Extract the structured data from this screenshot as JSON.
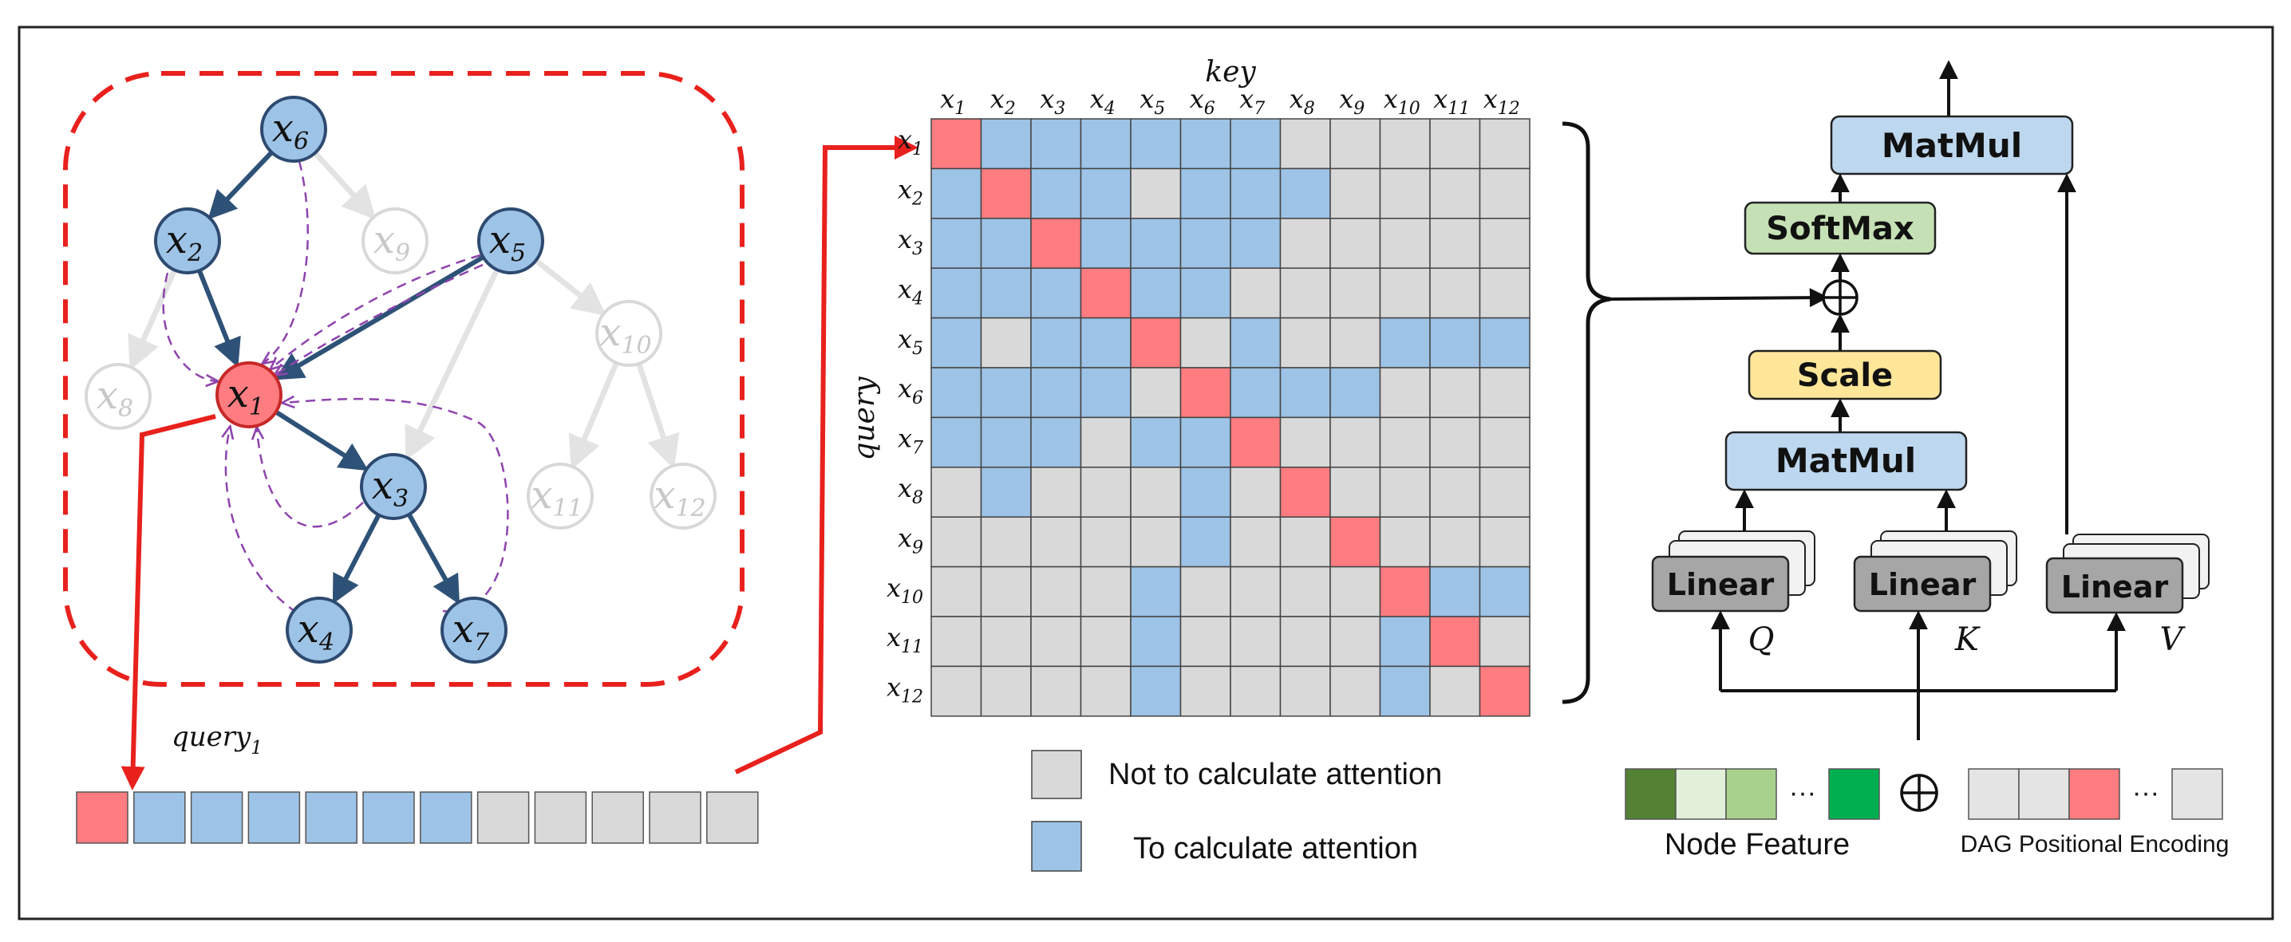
{
  "graph": {
    "nodes": [
      {
        "id": "x6",
        "base": "x",
        "sub": "6",
        "state": "active"
      },
      {
        "id": "x9",
        "base": "x",
        "sub": "9",
        "state": "inactive"
      },
      {
        "id": "x2",
        "base": "x",
        "sub": "2",
        "state": "active"
      },
      {
        "id": "x5",
        "base": "x",
        "sub": "5",
        "state": "active"
      },
      {
        "id": "x10",
        "base": "x",
        "sub": "10",
        "state": "inactive"
      },
      {
        "id": "x8",
        "base": "x",
        "sub": "8",
        "state": "inactive"
      },
      {
        "id": "x1",
        "base": "x",
        "sub": "1",
        "state": "query"
      },
      {
        "id": "x3",
        "base": "x",
        "sub": "3",
        "state": "active"
      },
      {
        "id": "x11",
        "base": "x",
        "sub": "11",
        "state": "inactive"
      },
      {
        "id": "x12",
        "base": "x",
        "sub": "12",
        "state": "inactive"
      },
      {
        "id": "x4",
        "base": "x",
        "sub": "4",
        "state": "active"
      },
      {
        "id": "x7",
        "base": "x",
        "sub": "7",
        "state": "active"
      }
    ],
    "edges_active": [
      [
        "x6",
        "x2"
      ],
      [
        "x2",
        "x1"
      ],
      [
        "x5",
        "x1"
      ],
      [
        "x1",
        "x3"
      ],
      [
        "x3",
        "x4"
      ],
      [
        "x3",
        "x7"
      ]
    ],
    "edges_inactive": [
      [
        "x6",
        "x9"
      ],
      [
        "x2",
        "x8"
      ],
      [
        "x5",
        "x10"
      ],
      [
        "x5",
        "x3"
      ],
      [
        "x10",
        "x11"
      ],
      [
        "x10",
        "x12"
      ]
    ],
    "edges_attention": [
      "x6",
      "x2",
      "x5",
      "x3",
      "x4",
      "x7"
    ],
    "query_label_base": "query",
    "query_label_sub": "1"
  },
  "query_vector": [
    "query",
    "active",
    "active",
    "active",
    "active",
    "active",
    "active",
    "none",
    "none",
    "none",
    "none",
    "none"
  ],
  "matrix": {
    "title_key": "key",
    "title_query": "query",
    "labels": [
      "1",
      "2",
      "3",
      "4",
      "5",
      "6",
      "7",
      "8",
      "9",
      "10",
      "11",
      "12"
    ],
    "rows": [
      [
        2,
        1,
        1,
        1,
        1,
        1,
        1,
        0,
        0,
        0,
        0,
        0
      ],
      [
        1,
        2,
        1,
        1,
        0,
        1,
        1,
        1,
        0,
        0,
        0,
        0
      ],
      [
        1,
        1,
        2,
        1,
        1,
        1,
        1,
        0,
        0,
        0,
        0,
        0
      ],
      [
        1,
        1,
        1,
        2,
        1,
        1,
        0,
        0,
        0,
        0,
        0,
        0
      ],
      [
        1,
        0,
        1,
        1,
        2,
        0,
        1,
        0,
        0,
        1,
        1,
        1
      ],
      [
        1,
        1,
        1,
        1,
        0,
        2,
        1,
        1,
        1,
        0,
        0,
        0
      ],
      [
        1,
        1,
        1,
        0,
        1,
        1,
        2,
        0,
        0,
        0,
        0,
        0
      ],
      [
        0,
        1,
        0,
        0,
        0,
        1,
        0,
        2,
        0,
        0,
        0,
        0
      ],
      [
        0,
        0,
        0,
        0,
        0,
        1,
        0,
        0,
        2,
        0,
        0,
        0
      ],
      [
        0,
        0,
        0,
        0,
        1,
        0,
        0,
        0,
        0,
        2,
        1,
        1
      ],
      [
        0,
        0,
        0,
        0,
        1,
        0,
        0,
        0,
        0,
        1,
        2,
        0
      ],
      [
        0,
        0,
        0,
        0,
        1,
        0,
        0,
        0,
        0,
        1,
        0,
        2
      ]
    ]
  },
  "legend": {
    "not_calc": "Not to calculate attention",
    "calc": "To calculate attention"
  },
  "architecture": {
    "matmul_top": "MatMul",
    "softmax": "SoftMax",
    "scale": "Scale",
    "matmul_bottom": "MatMul",
    "linear_q": "Linear",
    "linear_k": "Linear",
    "linear_v": "Linear",
    "label_q": "Q",
    "label_k": "K",
    "label_v": "V",
    "node_feature": "Node Feature",
    "dag_pe": "DAG Positional Encoding",
    "ellipsis": "···"
  },
  "colors": {
    "active": "#9dc3e6",
    "query": "#ff7c80",
    "inactive": "#d9d9d9",
    "dashed_red": "#e8211d",
    "edge_dark": "#2e5277",
    "edge_light": "#e3e3e3",
    "attention_dash": "#8e44ad",
    "node_stroke": "#2e4a70",
    "box_blue": "#bdd7ee",
    "box_green": "#c5e0b4",
    "box_yellow": "#ffe699",
    "box_gray": "#a6a6a6",
    "feat_dark": "#548235",
    "feat_light": "#e2f0d9",
    "feat_mid": "#a9d18e",
    "feat_bright": "#00b050"
  }
}
